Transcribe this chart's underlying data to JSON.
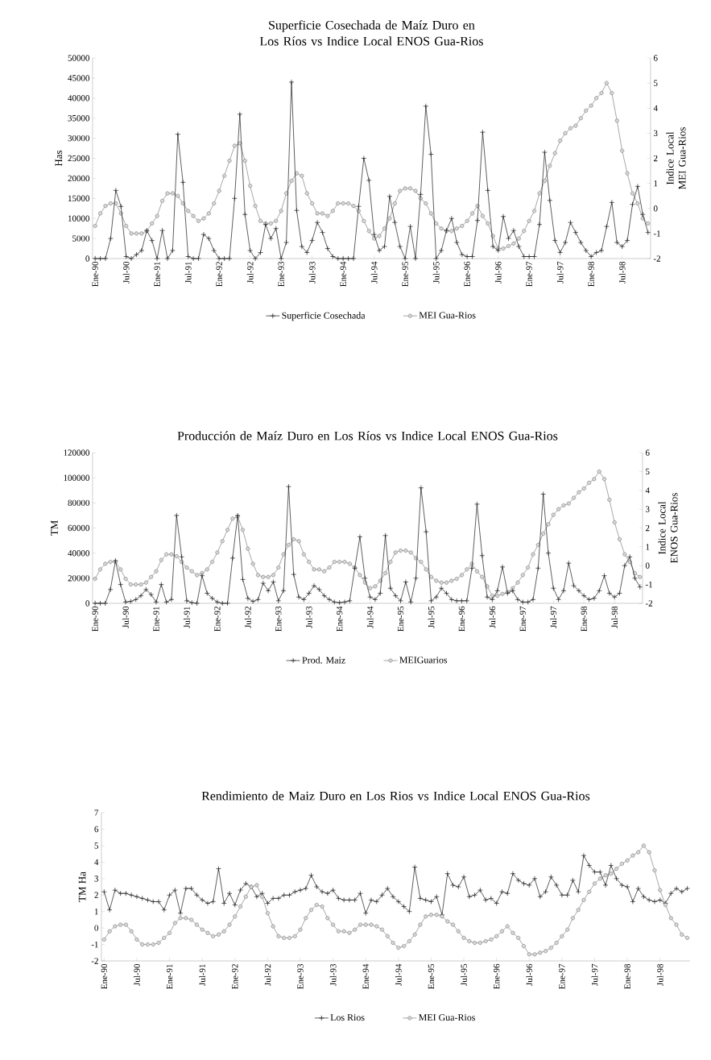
{
  "chart_data": [
    {
      "type": "line",
      "title": "Superficie Cosechada de Maíz Duro en Los Ríos vs Indice Local ENOS Gua-Rios",
      "ylabel": "Has",
      "y2label": "Indice Local MEI Gua-Rios",
      "categories": [
        "Ene-90",
        null,
        null,
        null,
        null,
        null,
        "Jul-90",
        null,
        null,
        null,
        null,
        null,
        "Ene-91",
        null,
        null,
        null,
        null,
        null,
        "Jul-91",
        null,
        null,
        null,
        null,
        null,
        "Ene-92",
        null,
        null,
        null,
        null,
        null,
        "Jul-92",
        null,
        null,
        null,
        null,
        null,
        "Ene-93",
        null,
        null,
        null,
        null,
        null,
        "Jul-93",
        null,
        null,
        null,
        null,
        null,
        "Ene-94",
        null,
        null,
        null,
        null,
        null,
        "Jul-94",
        null,
        null,
        null,
        null,
        null,
        "Ene-95",
        null,
        null,
        null,
        null,
        null,
        "Jul-95",
        null,
        null,
        null,
        null,
        null,
        "Ene-96",
        null,
        null,
        null,
        null,
        null,
        "Jul-96",
        null,
        null,
        null,
        null,
        null,
        "Ene-97",
        null,
        null,
        null,
        null,
        null,
        "Jul-97",
        null,
        null,
        null,
        null,
        null,
        "Ene-98",
        null,
        null,
        null,
        null,
        null,
        "Jul-98",
        null,
        null,
        null,
        null,
        null
      ],
      "ylim": [
        0,
        50000
      ],
      "yticks": [
        0,
        5000,
        10000,
        15000,
        20000,
        25000,
        30000,
        35000,
        40000,
        45000,
        50000
      ],
      "y2lim": [
        -2,
        6
      ],
      "y2ticks": [
        -2,
        -1,
        0,
        1,
        2,
        3,
        4,
        5,
        6
      ],
      "legend": "bottom",
      "series": [
        {
          "name": "Superficie Cosechada",
          "color": "#1a1a1a",
          "marker": "cross",
          "values": [
            0,
            0,
            0,
            5000,
            17000,
            13000,
            500,
            0,
            1000,
            2000,
            7000,
            4500,
            0,
            7000,
            0,
            2000,
            31000,
            19000,
            500,
            0,
            0,
            6000,
            5000,
            2000,
            0,
            0,
            0,
            15000,
            36000,
            11000,
            2000,
            0,
            1500,
            8500,
            5000,
            7500,
            0,
            4000,
            44000,
            12000,
            3000,
            1500,
            4500,
            9000,
            6500,
            2500,
            500,
            0,
            0,
            0,
            0,
            13000,
            25000,
            19500,
            6000,
            2000,
            3000,
            15500,
            9000,
            3000,
            0,
            8000,
            0,
            16000,
            38000,
            26000,
            0,
            2000,
            7000,
            10000,
            4000,
            1000,
            500,
            500,
            9500,
            31500,
            17000,
            3000,
            2000,
            10500,
            5000,
            7000,
            3000,
            500,
            500,
            500,
            8500,
            26500,
            14500,
            4500,
            1500,
            4000,
            9000,
            6500,
            4000,
            2000,
            500,
            1500,
            2000,
            8000,
            14000,
            4000,
            3000,
            4500,
            13500,
            18000,
            11000,
            6500
          ]
        },
        {
          "name": "MEI Gua-Rios",
          "color": "#808080",
          "marker": "circle",
          "axis": "y2",
          "values": [
            -0.7,
            -0.2,
            0.1,
            0.2,
            0.2,
            -0.2,
            -0.7,
            -1.0,
            -1.0,
            -1.0,
            -0.9,
            -0.6,
            -0.3,
            0.3,
            0.6,
            0.6,
            0.5,
            0.2,
            -0.1,
            -0.3,
            -0.5,
            -0.4,
            -0.2,
            0.2,
            0.7,
            1.3,
            1.9,
            2.5,
            2.6,
            1.9,
            0.9,
            0.1,
            -0.5,
            -0.6,
            -0.6,
            -0.5,
            -0.1,
            0.6,
            1.1,
            1.4,
            1.3,
            0.6,
            0.2,
            -0.2,
            -0.2,
            -0.3,
            -0.1,
            0.2,
            0.2,
            0.2,
            0.1,
            -0.1,
            -0.5,
            -0.9,
            -1.2,
            -1.1,
            -0.8,
            -0.4,
            0.2,
            0.7,
            0.8,
            0.8,
            0.7,
            0.4,
            0.2,
            -0.2,
            -0.6,
            -0.8,
            -0.9,
            -0.9,
            -0.8,
            -0.7,
            -0.5,
            -0.2,
            0.1,
            -0.3,
            -0.6,
            -1.1,
            -1.6,
            -1.6,
            -1.5,
            -1.4,
            -1.2,
            -0.9,
            -0.5,
            -0.1,
            0.6,
            1.1,
            1.7,
            2.2,
            2.7,
            3.0,
            3.2,
            3.3,
            3.6,
            3.9,
            4.1,
            4.4,
            4.6,
            5.0,
            4.6,
            3.5,
            2.3,
            1.4,
            0.6,
            0.2,
            -0.4,
            -0.6
          ]
        }
      ]
    },
    {
      "type": "line",
      "title": "Producción de Maíz Duro en Los Ríos vs Indice Local ENOS Gua-Rios",
      "ylabel": "TM",
      "y2label": "Indice Local ENOS Gua-Rios",
      "categories": [
        "Ene-90",
        null,
        null,
        null,
        null,
        null,
        "Jul-90",
        null,
        null,
        null,
        null,
        null,
        "Ene-91",
        null,
        null,
        null,
        null,
        null,
        "Jul-91",
        null,
        null,
        null,
        null,
        null,
        "Ene-92",
        null,
        null,
        null,
        null,
        null,
        "Jul-92",
        null,
        null,
        null,
        null,
        null,
        "Ene-93",
        null,
        null,
        null,
        null,
        null,
        "Jul-93",
        null,
        null,
        null,
        null,
        null,
        "Ene-94",
        null,
        null,
        null,
        null,
        null,
        "Jul-94",
        null,
        null,
        null,
        null,
        null,
        "Ene-95",
        null,
        null,
        null,
        null,
        null,
        "Jul-95",
        null,
        null,
        null,
        null,
        null,
        "Ene-96",
        null,
        null,
        null,
        null,
        null,
        "Jul-96",
        null,
        null,
        null,
        null,
        null,
        "Ene-97",
        null,
        null,
        null,
        null,
        null,
        "Jul-97",
        null,
        null,
        null,
        null,
        null,
        "Ene-98",
        null,
        null,
        null,
        null,
        null,
        "Jul-98",
        null,
        null,
        null,
        null,
        null
      ],
      "ylim": [
        0,
        120000
      ],
      "yticks": [
        0,
        20000,
        40000,
        60000,
        80000,
        100000,
        120000
      ],
      "y2lim": [
        -2,
        6
      ],
      "y2ticks": [
        -2,
        -1,
        0,
        1,
        2,
        3,
        4,
        5,
        6
      ],
      "legend": "bottom",
      "series": [
        {
          "name": "Prod. Maiz",
          "color": "#1a1a1a",
          "marker": "cross",
          "values": [
            0,
            0,
            0,
            11000,
            34000,
            15000,
            1000,
            1500,
            3000,
            6000,
            11000,
            7000,
            1000,
            15000,
            1000,
            3000,
            70000,
            37000,
            2000,
            500,
            0,
            22000,
            8000,
            4000,
            1000,
            0,
            0,
            36000,
            70000,
            19000,
            4000,
            1500,
            3000,
            16000,
            10000,
            17000,
            2000,
            10000,
            93000,
            23000,
            5000,
            3000,
            8000,
            14000,
            11000,
            6000,
            3000,
            1000,
            500,
            1000,
            2000,
            28000,
            53000,
            20000,
            5000,
            3000,
            8000,
            54000,
            12000,
            6000,
            2000,
            17000,
            1000,
            20000,
            92000,
            57000,
            2000,
            5000,
            12000,
            8000,
            3000,
            2000,
            2000,
            2000,
            28000,
            79000,
            38000,
            5000,
            3000,
            10000,
            29000,
            8000,
            10000,
            3000,
            1000,
            1000,
            3000,
            28000,
            87000,
            40000,
            12000,
            3000,
            10000,
            32000,
            14000,
            10000,
            6000,
            3000,
            4000,
            10000,
            22000,
            8000,
            5000,
            8000,
            30000,
            37000,
            20000,
            13000
          ]
        },
        {
          "name": "MEIGuarios",
          "color": "#808080",
          "marker": "circle",
          "axis": "y2",
          "values": [
            -0.7,
            -0.2,
            0.1,
            0.2,
            0.2,
            -0.2,
            -0.7,
            -1.0,
            -1.0,
            -1.0,
            -0.9,
            -0.6,
            -0.3,
            0.3,
            0.6,
            0.6,
            0.5,
            0.2,
            -0.1,
            -0.3,
            -0.5,
            -0.4,
            -0.2,
            0.2,
            0.7,
            1.3,
            1.9,
            2.5,
            2.6,
            1.9,
            0.9,
            0.1,
            -0.5,
            -0.6,
            -0.6,
            -0.5,
            -0.1,
            0.6,
            1.1,
            1.4,
            1.3,
            0.6,
            0.2,
            -0.2,
            -0.2,
            -0.3,
            -0.1,
            0.2,
            0.2,
            0.2,
            0.1,
            -0.1,
            -0.5,
            -0.9,
            -1.2,
            -1.1,
            -0.8,
            -0.4,
            0.2,
            0.7,
            0.8,
            0.8,
            0.7,
            0.4,
            0.2,
            -0.2,
            -0.6,
            -0.8,
            -0.9,
            -0.9,
            -0.8,
            -0.7,
            -0.5,
            -0.2,
            0.1,
            -0.3,
            -0.6,
            -1.1,
            -1.6,
            -1.6,
            -1.5,
            -1.4,
            -1.2,
            -0.9,
            -0.5,
            -0.1,
            0.6,
            1.1,
            1.7,
            2.2,
            2.7,
            3.0,
            3.2,
            3.3,
            3.6,
            3.9,
            4.1,
            4.4,
            4.6,
            5.0,
            4.6,
            3.5,
            2.3,
            1.4,
            0.6,
            0.2,
            -0.4,
            -0.6
          ]
        }
      ]
    },
    {
      "type": "line",
      "title": "Rendimiento de Maiz Duro en Los Rios vs Indice Local ENOS Gua-Rios",
      "ylabel": "TM Ha",
      "categories": [
        "Ene-90",
        null,
        null,
        null,
        null,
        null,
        "Jul-90",
        null,
        null,
        null,
        null,
        null,
        "Ene-91",
        null,
        null,
        null,
        null,
        null,
        "Jul-91",
        null,
        null,
        null,
        null,
        null,
        "Ene-92",
        null,
        null,
        null,
        null,
        null,
        "Jul-92",
        null,
        null,
        null,
        null,
        null,
        "Ene-93",
        null,
        null,
        null,
        null,
        null,
        "Jul-93",
        null,
        null,
        null,
        null,
        null,
        "Ene-94",
        null,
        null,
        null,
        null,
        null,
        "Jul-94",
        null,
        null,
        null,
        null,
        null,
        "Ene-95",
        null,
        null,
        null,
        null,
        null,
        "Jul-95",
        null,
        null,
        null,
        null,
        null,
        "Ene-96",
        null,
        null,
        null,
        null,
        null,
        "Jul-96",
        null,
        null,
        null,
        null,
        null,
        "Ene-97",
        null,
        null,
        null,
        null,
        null,
        "Jul-97",
        null,
        null,
        null,
        null,
        null,
        "Ene-98",
        null,
        null,
        null,
        null,
        null,
        "Jul-98",
        null,
        null,
        null,
        null,
        null
      ],
      "ylim": [
        -2,
        7
      ],
      "yticks": [
        -2,
        -1,
        0,
        1,
        2,
        3,
        4,
        5,
        6,
        7
      ],
      "legend": "bottom",
      "series": [
        {
          "name": "Los Rios",
          "color": "#1a1a1a",
          "marker": "cross",
          "values": [
            2.2,
            1.1,
            2.3,
            2.1,
            2.1,
            2.0,
            1.9,
            1.8,
            1.7,
            1.6,
            1.6,
            1.1,
            2.0,
            2.3,
            0.9,
            2.4,
            2.4,
            2.0,
            1.7,
            1.5,
            1.6,
            3.6,
            1.5,
            2.1,
            1.4,
            2.3,
            2.7,
            2.5,
            1.9,
            2.1,
            1.5,
            1.8,
            1.8,
            2.0,
            2.0,
            2.2,
            2.3,
            2.4,
            3.2,
            2.5,
            2.2,
            2.1,
            2.3,
            1.8,
            1.7,
            1.7,
            1.7,
            2.1,
            0.9,
            1.7,
            1.6,
            2.0,
            2.4,
            1.9,
            1.6,
            1.3,
            1.0,
            3.7,
            1.8,
            1.7,
            1.6,
            1.9,
            0.8,
            3.3,
            2.6,
            2.5,
            3.1,
            1.9,
            2.0,
            2.3,
            1.7,
            1.8,
            1.5,
            2.2,
            2.1,
            3.3,
            2.9,
            2.7,
            2.6,
            3.0,
            1.9,
            2.2,
            3.1,
            2.6,
            2.0,
            2.0,
            2.9,
            2.2,
            4.4,
            3.8,
            3.4,
            3.4,
            2.6,
            3.8,
            3.0,
            2.6,
            2.5,
            1.6,
            2.4,
            1.9,
            1.7,
            1.6,
            1.7,
            1.5,
            2.1,
            2.4,
            2.2,
            2.4
          ]
        },
        {
          "name": "MEI Gua-Rios",
          "color": "#808080",
          "marker": "circle",
          "values": [
            -0.7,
            -0.2,
            0.1,
            0.2,
            0.2,
            -0.2,
            -0.7,
            -1.0,
            -1.0,
            -1.0,
            -0.9,
            -0.6,
            -0.3,
            0.3,
            0.6,
            0.6,
            0.5,
            0.2,
            -0.1,
            -0.3,
            -0.5,
            -0.4,
            -0.2,
            0.2,
            0.7,
            1.3,
            1.9,
            2.5,
            2.6,
            1.9,
            0.9,
            0.1,
            -0.5,
            -0.6,
            -0.6,
            -0.5,
            -0.1,
            0.6,
            1.1,
            1.4,
            1.3,
            0.6,
            0.2,
            -0.2,
            -0.2,
            -0.3,
            -0.1,
            0.2,
            0.2,
            0.2,
            0.1,
            -0.1,
            -0.5,
            -0.9,
            -1.2,
            -1.1,
            -0.8,
            -0.4,
            0.2,
            0.7,
            0.8,
            0.8,
            0.7,
            0.4,
            0.2,
            -0.2,
            -0.6,
            -0.8,
            -0.9,
            -0.9,
            -0.8,
            -0.7,
            -0.5,
            -0.2,
            0.1,
            -0.3,
            -0.6,
            -1.1,
            -1.6,
            -1.6,
            -1.5,
            -1.4,
            -1.2,
            -0.9,
            -0.5,
            -0.1,
            0.6,
            1.1,
            1.7,
            2.2,
            2.7,
            3.0,
            3.2,
            3.3,
            3.6,
            3.9,
            4.1,
            4.4,
            4.6,
            5.0,
            4.6,
            3.5,
            2.3,
            1.4,
            0.6,
            0.2,
            -0.4,
            -0.6
          ]
        }
      ]
    }
  ]
}
